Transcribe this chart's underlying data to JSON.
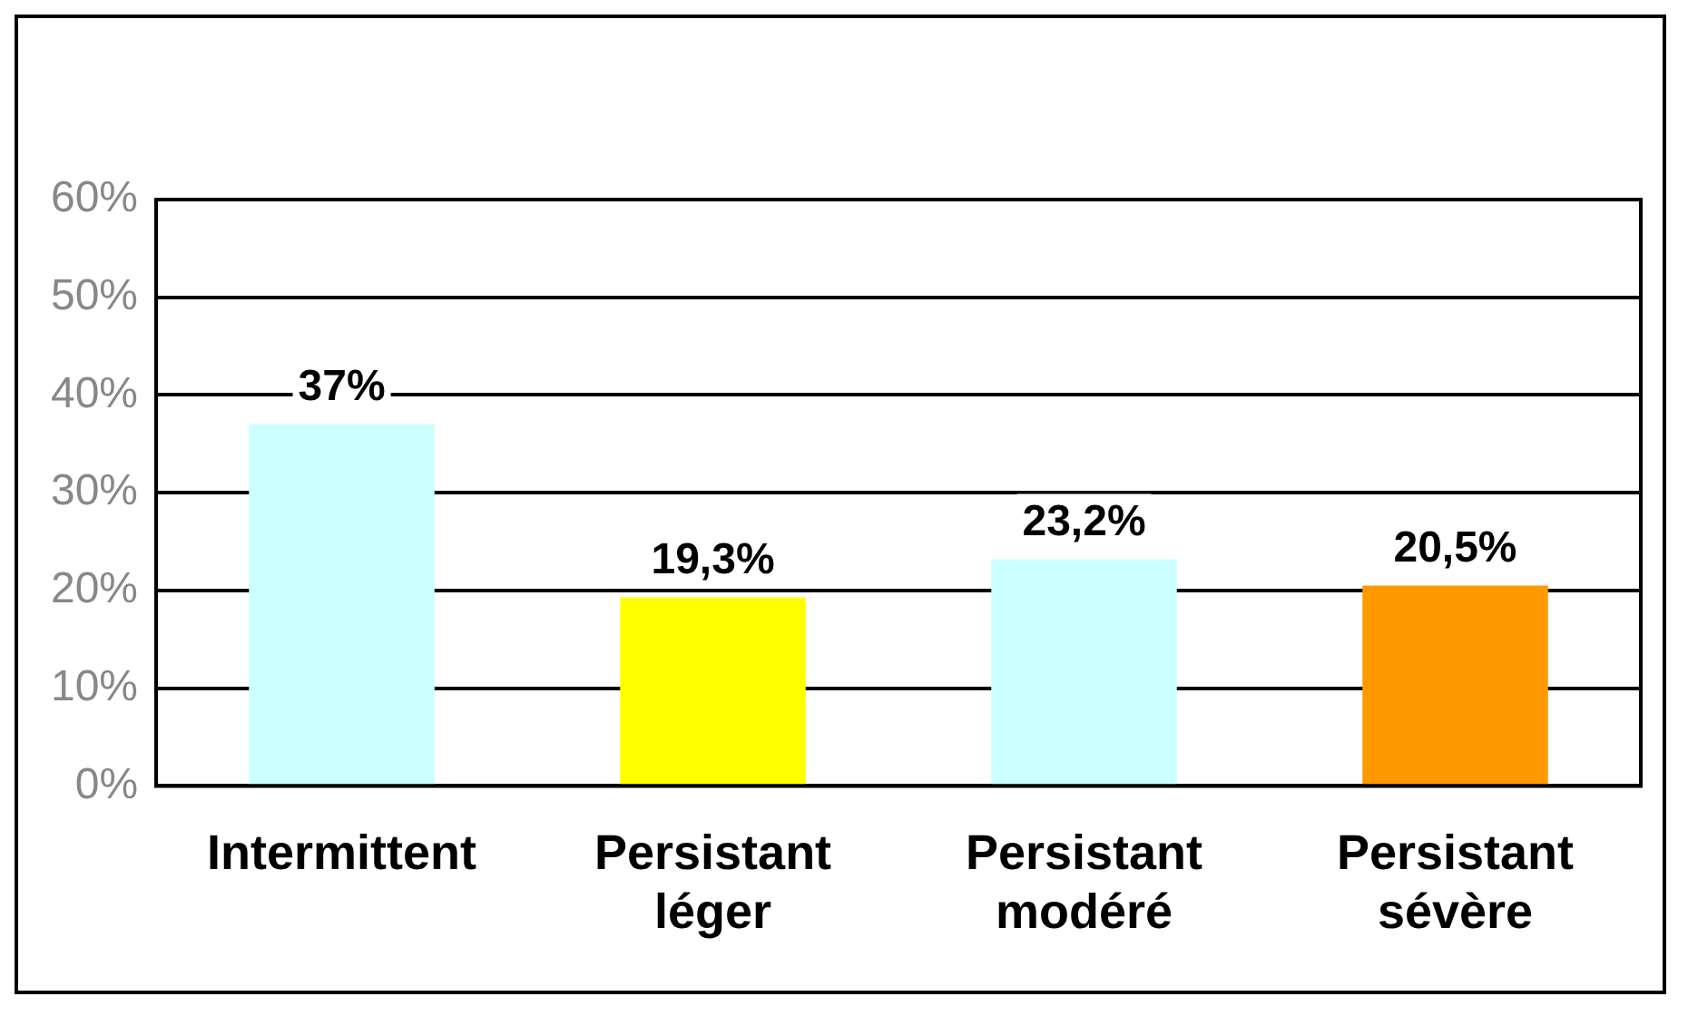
{
  "chart_data": {
    "type": "bar",
    "categories": [
      "Intermittent",
      "Persistant léger",
      "Persistant modéré",
      "Persistant sévère"
    ],
    "values": [
      37,
      19.3,
      23.2,
      20.5
    ],
    "colors": [
      "#ccffff",
      "#ffff00",
      "#ccffff",
      "#ff9900"
    ],
    "value_labels": [
      "37%",
      "19,3%",
      "23,2%",
      "20,5%"
    ],
    "ylim": [
      0,
      60
    ],
    "yticks": [
      {
        "value": 0,
        "label": "0%"
      },
      {
        "value": 10,
        "label": "10%"
      },
      {
        "value": 20,
        "label": "20%"
      },
      {
        "value": 30,
        "label": "30%"
      },
      {
        "value": 40,
        "label": "40%"
      },
      {
        "value": 50,
        "label": "50%"
      },
      {
        "value": 60,
        "label": "60%"
      }
    ],
    "grid": "y",
    "legend": false
  }
}
